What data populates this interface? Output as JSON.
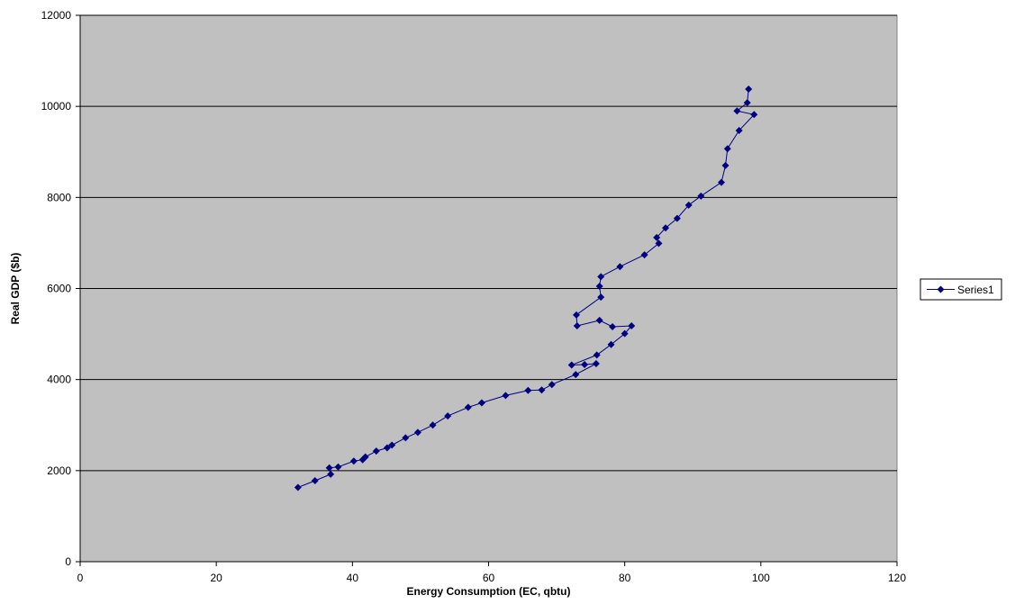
{
  "chart_data": {
    "type": "line",
    "title": "",
    "xlabel": "Energy Consumption (EC, qbtu)",
    "ylabel": "Real GDP ($b)",
    "xlim": [
      0,
      120
    ],
    "ylim": [
      0,
      12000
    ],
    "xticks": [
      0,
      20,
      40,
      60,
      80,
      100,
      120
    ],
    "yticks": [
      0,
      2000,
      4000,
      6000,
      8000,
      10000,
      12000
    ],
    "grid": "horizontal",
    "legend_position": "right",
    "plot_background": "#C0C0C0",
    "series": [
      {
        "name": "Series1",
        "color": "#000080",
        "marker": "diamond",
        "points": [
          [
            32.0,
            1630
          ],
          [
            34.5,
            1780
          ],
          [
            36.8,
            1920
          ],
          [
            36.6,
            2060
          ],
          [
            37.9,
            2080
          ],
          [
            40.2,
            2210
          ],
          [
            41.5,
            2240
          ],
          [
            41.9,
            2300
          ],
          [
            43.5,
            2430
          ],
          [
            45.1,
            2500
          ],
          [
            45.8,
            2560
          ],
          [
            47.8,
            2720
          ],
          [
            49.6,
            2840
          ],
          [
            51.8,
            3000
          ],
          [
            54.0,
            3200
          ],
          [
            57.0,
            3390
          ],
          [
            59.0,
            3490
          ],
          [
            62.5,
            3650
          ],
          [
            65.8,
            3760
          ],
          [
            67.8,
            3770
          ],
          [
            69.3,
            3890
          ],
          [
            72.8,
            4110
          ],
          [
            75.8,
            4350
          ],
          [
            74.1,
            4330
          ],
          [
            72.2,
            4320
          ],
          [
            75.9,
            4540
          ],
          [
            78.0,
            4770
          ],
          [
            80.0,
            5010
          ],
          [
            81.0,
            5180
          ],
          [
            78.2,
            5160
          ],
          [
            76.3,
            5300
          ],
          [
            73.0,
            5180
          ],
          [
            72.9,
            5420
          ],
          [
            76.5,
            5810
          ],
          [
            76.3,
            6050
          ],
          [
            76.5,
            6260
          ],
          [
            79.3,
            6480
          ],
          [
            82.9,
            6740
          ],
          [
            85.0,
            6990
          ],
          [
            84.7,
            7120
          ],
          [
            86.0,
            7330
          ],
          [
            87.7,
            7540
          ],
          [
            89.4,
            7830
          ],
          [
            91.2,
            8030
          ],
          [
            94.2,
            8330
          ],
          [
            94.8,
            8700
          ],
          [
            95.1,
            9070
          ],
          [
            96.8,
            9470
          ],
          [
            99.0,
            9820
          ],
          [
            96.5,
            9900
          ],
          [
            98.0,
            10080
          ],
          [
            98.2,
            10380
          ]
        ]
      }
    ]
  }
}
